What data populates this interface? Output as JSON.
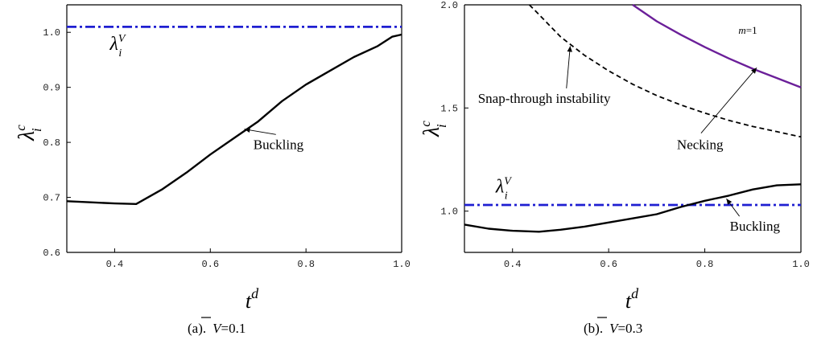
{
  "chart_data": [
    {
      "type": "line",
      "panel": "a",
      "caption_prefix": "(a).",
      "caption_symbol": "V",
      "caption_value": "=0.1",
      "xlabel_base": "t",
      "xlabel_sup": "d",
      "ylabel_base": "λ",
      "ylabel_sub": "i",
      "ylabel_sup": "c",
      "xlim": [
        0.3,
        1.0
      ],
      "ylim": [
        0.6,
        1.05
      ],
      "xticks": [
        0.4,
        0.6,
        0.8,
        1.0
      ],
      "xtick_labels": [
        "0.4",
        "0.6",
        "0.8",
        "1.0"
      ],
      "yticks": [
        0.6,
        0.7,
        0.8,
        0.9,
        1.0
      ],
      "ytick_labels": [
        "0.6",
        "0.7",
        "0.8",
        "0.9",
        "1.0"
      ],
      "series": [
        {
          "style": "dashdot",
          "color": "#1f1fd1",
          "x": [
            0.3,
            1.0
          ],
          "y": [
            1.01,
            1.01
          ]
        },
        {
          "style": "solid",
          "color": "#000000",
          "x": [
            0.3,
            0.35,
            0.4,
            0.445,
            0.5,
            0.55,
            0.6,
            0.65,
            0.7,
            0.75,
            0.8,
            0.85,
            0.9,
            0.95,
            0.98,
            1.0
          ],
          "y": [
            0.693,
            0.691,
            0.689,
            0.688,
            0.715,
            0.745,
            0.778,
            0.808,
            0.838,
            0.875,
            0.905,
            0.93,
            0.955,
            0.975,
            0.992,
            0.996
          ]
        }
      ],
      "annotations": [
        {
          "text": "Buckling",
          "at": [
            0.69,
            0.788
          ],
          "arrow_to": [
            0.671,
            0.824
          ]
        }
      ],
      "value_label": {
        "base": "λ",
        "sub": "i",
        "sup": "V",
        "at": [
          0.39,
          0.968
        ]
      }
    },
    {
      "type": "line",
      "panel": "b",
      "caption_prefix": "(b).",
      "caption_symbol": "V",
      "caption_value": "=0.3",
      "xlabel_base": "t",
      "xlabel_sup": "d",
      "ylabel_base": "λ",
      "ylabel_sub": "i",
      "ylabel_sup": "c",
      "xlim": [
        0.3,
        1.0
      ],
      "ylim": [
        0.8,
        2.0
      ],
      "xticks": [
        0.4,
        0.6,
        0.8,
        1.0
      ],
      "xtick_labels": [
        "0.4",
        "0.6",
        "0.8",
        "1.0"
      ],
      "yticks": [
        1.0,
        1.5,
        2.0
      ],
      "ytick_labels": [
        "1.0",
        "1.5",
        "2.0"
      ],
      "series": [
        {
          "name": "m=1",
          "style": "solid",
          "color": "#6b1f99",
          "x": [
            0.65,
            0.7,
            0.75,
            0.8,
            0.85,
            0.9,
            0.95,
            1.0
          ],
          "y": [
            2.0,
            1.92,
            1.855,
            1.795,
            1.74,
            1.69,
            1.645,
            1.6
          ]
        },
        {
          "style": "dashed",
          "color": "#000000",
          "x": [
            0.435,
            0.45,
            0.5,
            0.55,
            0.6,
            0.65,
            0.7,
            0.75,
            0.8,
            0.85,
            0.9,
            0.95,
            1.0
          ],
          "y": [
            2.0,
            1.965,
            1.845,
            1.755,
            1.68,
            1.615,
            1.56,
            1.515,
            1.475,
            1.44,
            1.41,
            1.385,
            1.36
          ]
        },
        {
          "style": "dashdot",
          "color": "#1f1fd1",
          "x": [
            0.3,
            1.0
          ],
          "y": [
            1.03,
            1.03
          ]
        },
        {
          "style": "solid",
          "color": "#000000",
          "x": [
            0.3,
            0.35,
            0.4,
            0.455,
            0.5,
            0.55,
            0.6,
            0.65,
            0.7,
            0.75,
            0.8,
            0.85,
            0.9,
            0.95,
            1.0
          ],
          "y": [
            0.935,
            0.915,
            0.905,
            0.9,
            0.91,
            0.925,
            0.945,
            0.965,
            0.985,
            1.02,
            1.05,
            1.075,
            1.105,
            1.125,
            1.13
          ]
        }
      ],
      "annotations": [
        {
          "text": "Snap-through instability",
          "at": [
            0.328,
            1.525
          ],
          "arrow_to": [
            0.52,
            1.8
          ]
        },
        {
          "text": "Necking",
          "at": [
            0.742,
            1.3
          ],
          "arrow_to": [
            0.908,
            1.695
          ]
        },
        {
          "text": "Buckling",
          "at": [
            0.852,
            0.905
          ],
          "arrow_to": [
            0.845,
            1.06
          ]
        }
      ],
      "series_label": {
        "m_text": "m",
        "rest_text": "=1",
        "at": [
          0.87,
          1.86
        ]
      },
      "value_label": {
        "base": "λ",
        "sub": "i",
        "sup": "V",
        "at": [
          0.365,
          1.09
        ]
      }
    }
  ]
}
